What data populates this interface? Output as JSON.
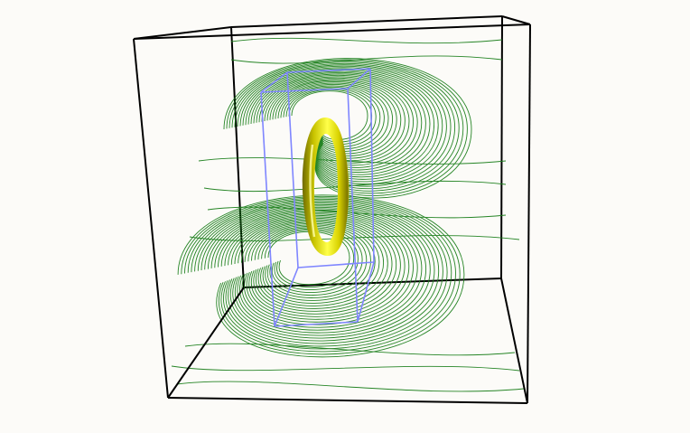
{
  "scene": {
    "background_color": "#fcfbf8",
    "bounding_box_color": "#000000",
    "inner_box_color": "#7f86ff",
    "streamline_color": "#1b7f1b",
    "ring_color": "#e8e800",
    "objects": [
      "outer-bounding-box",
      "inner-bounding-box",
      "magnetic-field-streamlines",
      "current-ring-torus"
    ]
  }
}
